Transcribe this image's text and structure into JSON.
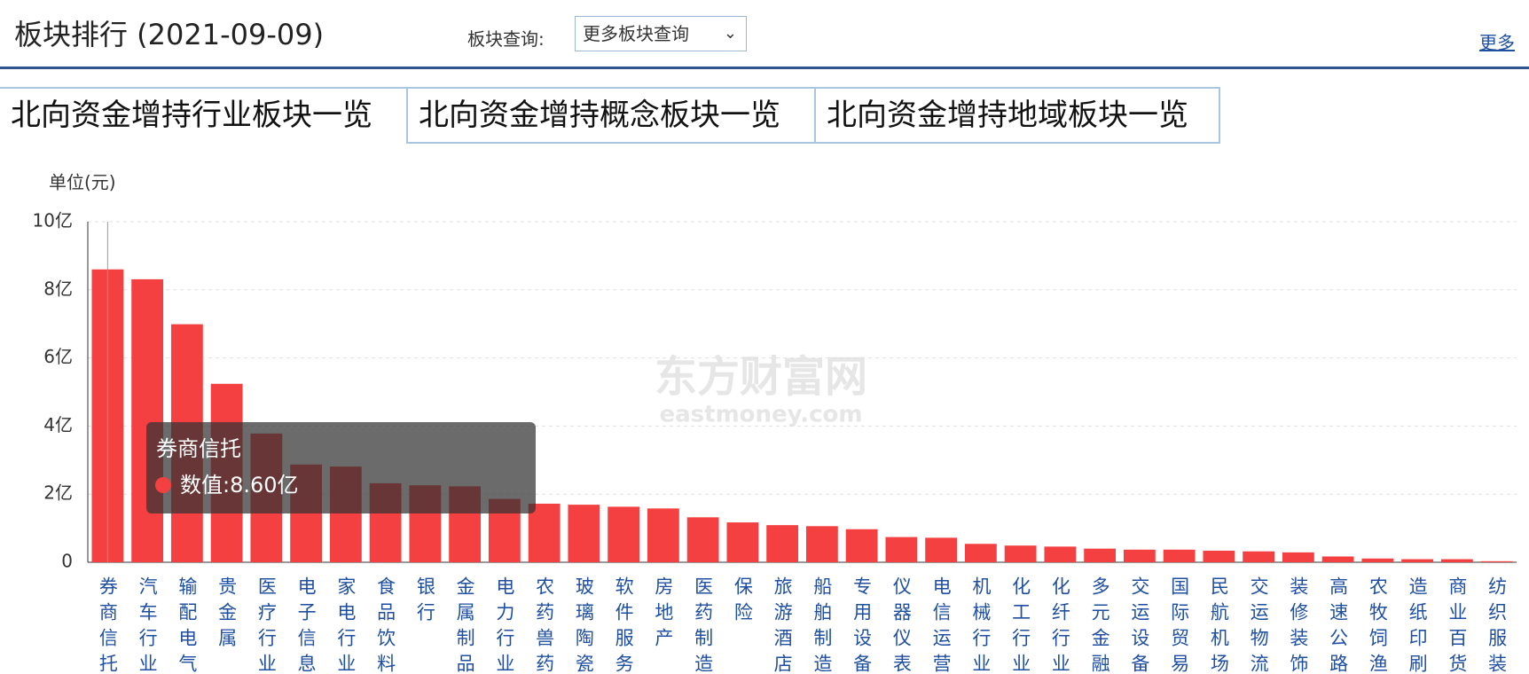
{
  "header": {
    "title": "板块排行 (2021-09-09)",
    "query_label": "板块查询:",
    "query_select": "更多板块查询",
    "more": "更多"
  },
  "tabs": [
    "北向资金增持行业板块一览",
    "北向资金增持概念板块一览",
    "北向资金增持地域板块一览"
  ],
  "chart_data": {
    "type": "bar",
    "unit_label": "单位(元)",
    "watermark": "东方财富网",
    "watermark_sub": "eastmoney.com",
    "categories": [
      "券商信托",
      "汽车行业",
      "输配电气",
      "贵金属",
      "医疗行业",
      "电子信息",
      "家电行业",
      "食品饮料",
      "银行",
      "金属制品",
      "电力行业",
      "农药兽药",
      "玻璃陶瓷",
      "软件服务",
      "房地产",
      "医药制造",
      "保险",
      "旅游酒店",
      "船舶制造",
      "专用设备",
      "仪器仪表",
      "电信运营",
      "机械行业",
      "化工行业",
      "化纤行业",
      "多元金融",
      "交运设备",
      "国际贸易",
      "民航机场",
      "交运物流",
      "装修装饰",
      "高速公路",
      "农牧饲渔",
      "造纸印刷",
      "商业百货",
      "纺织服装"
    ],
    "values": [
      8.6,
      8.31,
      6.99,
      5.24,
      3.78,
      2.87,
      2.81,
      2.32,
      2.26,
      2.23,
      1.86,
      1.72,
      1.69,
      1.63,
      1.58,
      1.32,
      1.17,
      1.09,
      1.06,
      0.97,
      0.74,
      0.72,
      0.54,
      0.49,
      0.46,
      0.4,
      0.37,
      0.37,
      0.34,
      0.32,
      0.29,
      0.17,
      0.11,
      0.09,
      0.09,
      0.03
    ],
    "color": "#f44040",
    "ylim": [
      0,
      10
    ],
    "yticks": [
      0,
      {
        "value": 2,
        "label": "2亿"
      },
      {
        "value": 4,
        "label": "4亿"
      },
      {
        "value": 6,
        "label": "6亿"
      },
      {
        "value": 8,
        "label": "8亿"
      },
      {
        "value": 10,
        "label": "10亿"
      }
    ],
    "grid": true,
    "tooltip": {
      "title": "券商信托",
      "text": "数值:8.60亿"
    }
  }
}
